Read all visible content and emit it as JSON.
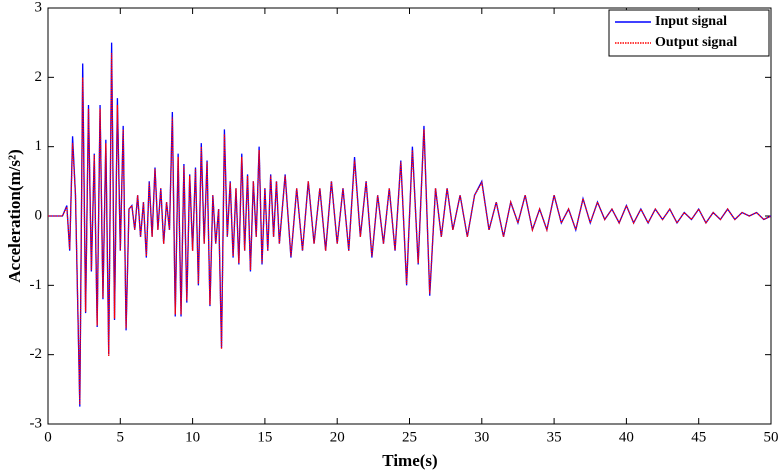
{
  "chart_data": {
    "type": "line",
    "xlabel": "Time(s)",
    "ylabel": "Acceleration(m/s²)",
    "x": [
      0,
      1,
      1.3,
      1.5,
      1.7,
      1.9,
      2.2,
      2.4,
      2.6,
      2.8,
      3.0,
      3.2,
      3.4,
      3.6,
      3.8,
      4.0,
      4.2,
      4.4,
      4.6,
      4.8,
      5.0,
      5.2,
      5.4,
      5.6,
      5.8,
      6.0,
      6.2,
      6.4,
      6.6,
      6.8,
      7.0,
      7.2,
      7.4,
      7.6,
      7.8,
      8.0,
      8.2,
      8.4,
      8.6,
      8.8,
      9.0,
      9.2,
      9.4,
      9.6,
      9.8,
      10.0,
      10.2,
      10.4,
      10.6,
      10.8,
      11.0,
      11.2,
      11.4,
      11.6,
      11.8,
      12.0,
      12.2,
      12.4,
      12.6,
      12.8,
      13.0,
      13.2,
      13.4,
      13.6,
      13.8,
      14.0,
      14.2,
      14.4,
      14.6,
      14.8,
      15.0,
      15.2,
      15.4,
      15.6,
      15.8,
      16.0,
      16.4,
      16.8,
      17.2,
      17.6,
      18.0,
      18.4,
      18.8,
      19.2,
      19.6,
      20.0,
      20.4,
      20.8,
      21.2,
      21.6,
      22.0,
      22.4,
      22.8,
      23.2,
      23.6,
      24.0,
      24.4,
      24.8,
      25.2,
      25.6,
      26.0,
      26.4,
      26.8,
      27.2,
      27.6,
      28.0,
      28.5,
      29,
      29.5,
      30,
      30.5,
      31,
      31.5,
      32,
      32.5,
      33,
      33.5,
      34,
      34.5,
      35,
      35.5,
      36,
      36.5,
      37,
      37.5,
      38,
      38.5,
      39,
      39.5,
      40,
      40.5,
      41,
      41.5,
      42,
      42.5,
      43,
      43.5,
      44,
      44.5,
      45,
      45.5,
      46,
      46.5,
      47,
      47.5,
      48,
      48.5,
      49,
      49.5,
      50
    ],
    "series": [
      {
        "name": "Input signal",
        "color": "#0000ff",
        "dash": false,
        "values": [
          0,
          0,
          0.15,
          -0.5,
          1.15,
          0.3,
          -2.75,
          2.2,
          -1.4,
          1.6,
          -0.8,
          0.9,
          -1.6,
          1.6,
          -1.2,
          1.1,
          -2.0,
          2.5,
          -1.5,
          1.7,
          -0.5,
          1.3,
          -1.65,
          0.1,
          0.15,
          -0.2,
          0.3,
          -0.3,
          0.2,
          -0.6,
          0.5,
          -0.3,
          0.7,
          -0.2,
          0.4,
          -0.4,
          0.2,
          -0.2,
          1.5,
          -1.45,
          0.9,
          -1.45,
          0.75,
          -1.25,
          0.6,
          -0.5,
          0.7,
          -1.0,
          1.05,
          -0.4,
          0.8,
          -1.3,
          0.3,
          -0.4,
          0.1,
          -1.9,
          1.25,
          -0.3,
          0.5,
          -0.6,
          0.4,
          -0.7,
          0.9,
          -0.5,
          0.6,
          -0.8,
          0.5,
          -0.3,
          1.0,
          -0.7,
          0.4,
          -0.5,
          0.6,
          -0.3,
          0.5,
          -0.4,
          0.6,
          -0.6,
          0.4,
          -0.5,
          0.5,
          -0.4,
          0.4,
          -0.5,
          0.5,
          -0.4,
          0.4,
          -0.5,
          0.85,
          -0.3,
          0.5,
          -0.6,
          0.3,
          -0.4,
          0.4,
          -0.5,
          0.8,
          -1.0,
          1.0,
          -0.7,
          1.3,
          -1.15,
          0.4,
          -0.3,
          0.4,
          -0.2,
          0.3,
          -0.3,
          0.3,
          0.5,
          -0.2,
          0.2,
          -0.3,
          0.2,
          -0.1,
          0.3,
          -0.2,
          0.1,
          -0.2,
          0.3,
          -0.1,
          0.1,
          -0.2,
          0.25,
          -0.1,
          0.2,
          -0.05,
          0.1,
          -0.1,
          0.15,
          -0.1,
          0.1,
          -0.1,
          0.1,
          -0.05,
          0.1,
          -0.1,
          0.05,
          -0.05,
          0.1,
          -0.1,
          0.05,
          -0.05,
          0.1,
          -0.05,
          0.05,
          0,
          0.05,
          -0.05,
          0
        ]
      },
      {
        "name": "Output signal",
        "color": "#ff0000",
        "dash": true,
        "values": [
          0,
          0,
          0.13,
          -0.48,
          1.05,
          0.32,
          -2.72,
          2.0,
          -1.38,
          1.55,
          -0.78,
          0.88,
          -1.58,
          1.55,
          -1.18,
          1.05,
          -2.02,
          2.35,
          -1.48,
          1.6,
          -0.5,
          1.25,
          -1.62,
          0.1,
          0.15,
          -0.2,
          0.3,
          -0.3,
          0.2,
          -0.58,
          0.48,
          -0.3,
          0.68,
          -0.2,
          0.4,
          -0.4,
          0.2,
          -0.2,
          1.42,
          -1.42,
          0.85,
          -1.42,
          0.72,
          -1.22,
          0.58,
          -0.5,
          0.68,
          -0.98,
          1.0,
          -0.4,
          0.78,
          -1.28,
          0.3,
          -0.4,
          0.1,
          -1.92,
          1.18,
          -0.3,
          0.48,
          -0.58,
          0.4,
          -0.68,
          0.85,
          -0.5,
          0.58,
          -0.78,
          0.5,
          -0.3,
          0.95,
          -0.68,
          0.4,
          -0.5,
          0.58,
          -0.3,
          0.5,
          -0.4,
          0.58,
          -0.58,
          0.4,
          -0.5,
          0.5,
          -0.4,
          0.4,
          -0.5,
          0.5,
          -0.4,
          0.4,
          -0.5,
          0.8,
          -0.3,
          0.5,
          -0.58,
          0.3,
          -0.4,
          0.4,
          -0.5,
          0.78,
          -0.98,
          0.95,
          -0.68,
          1.25,
          -1.12,
          0.4,
          -0.3,
          0.4,
          -0.2,
          0.3,
          -0.3,
          0.3,
          0.48,
          -0.2,
          0.2,
          -0.3,
          0.2,
          -0.1,
          0.3,
          -0.2,
          0.1,
          -0.2,
          0.3,
          -0.1,
          0.1,
          -0.2,
          0.25,
          -0.1,
          0.2,
          -0.05,
          0.1,
          -0.1,
          0.15,
          -0.1,
          0.1,
          -0.1,
          0.1,
          -0.05,
          0.1,
          -0.1,
          0.05,
          -0.05,
          0.1,
          -0.1,
          0.05,
          -0.05,
          0.1,
          -0.05,
          0.05,
          0,
          0.05,
          -0.05,
          0
        ]
      }
    ],
    "xlim": [
      0,
      50
    ],
    "xticks": [
      0,
      5,
      10,
      15,
      20,
      25,
      30,
      35,
      40,
      45,
      50
    ],
    "ylim": [
      -3,
      3
    ],
    "yticks": [
      -3,
      -2,
      -1,
      0,
      1,
      2,
      3
    ],
    "grid": false,
    "legend": "upper right"
  }
}
